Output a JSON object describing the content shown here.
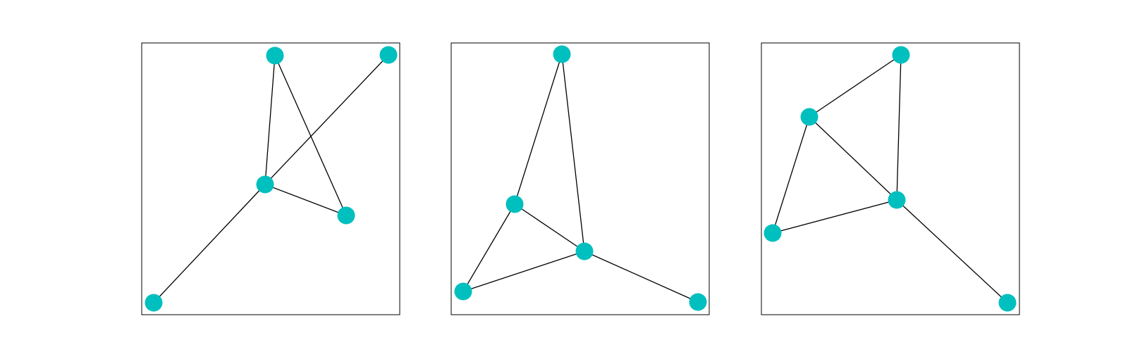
{
  "style": {
    "node_color": "#00bfbf",
    "edge_color": "#000000",
    "frame_color": "#000000",
    "background": "#ffffff"
  },
  "panels": [
    {
      "nodes": [
        "n0",
        "n1",
        "n2",
        "n3",
        "n4"
      ],
      "edges": [
        [
          "n0",
          "n1"
        ],
        [
          "n0",
          "n2"
        ],
        [
          "n1",
          "n2"
        ],
        [
          "n1",
          "n3"
        ],
        [
          "n1",
          "n4"
        ]
      ]
    },
    {
      "nodes": [
        "n0",
        "n1",
        "n2",
        "n3",
        "n4"
      ],
      "edges": [
        [
          "n0",
          "n1"
        ],
        [
          "n0",
          "n2"
        ],
        [
          "n1",
          "n2"
        ],
        [
          "n1",
          "n3"
        ],
        [
          "n2",
          "n3"
        ],
        [
          "n2",
          "n4"
        ]
      ]
    },
    {
      "nodes": [
        "n0",
        "n1",
        "n2",
        "n3",
        "n4"
      ],
      "edges": [
        [
          "n0",
          "n1"
        ],
        [
          "n0",
          "n2"
        ],
        [
          "n1",
          "n2"
        ],
        [
          "n1",
          "n3"
        ],
        [
          "n2",
          "n3"
        ],
        [
          "n2",
          "n4"
        ]
      ]
    }
  ]
}
